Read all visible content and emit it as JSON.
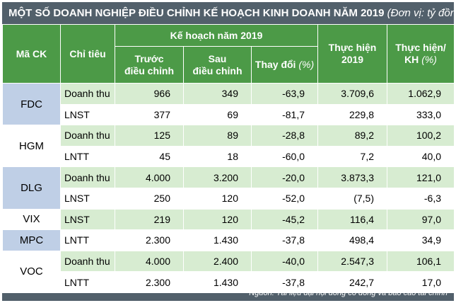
{
  "title": {
    "main": "MỘT SỐ DOANH NGHIỆP ĐIỀU CHỈNH KẾ HOẠCH KINH DOANH NĂM 2019",
    "unit": "(Đơn vị: tỷ đồng)"
  },
  "headers": {
    "code": "Mã CK",
    "metric": "Chỉ tiêu",
    "plan_group": "Kế hoạch năm 2019",
    "before_line1": "Trước",
    "before_line2": "điều chỉnh",
    "after_line1": "Sau",
    "after_line2": "điều chỉnh",
    "change_label": "Thay đổi",
    "change_unit": "(%)",
    "actual_line1": "Thực hiện",
    "actual_line2": "2019",
    "ratio_line1": "Thực hiện/",
    "ratio_line2": "KH",
    "ratio_unit": "(%)"
  },
  "companies": [
    {
      "code": "FDC",
      "rows": [
        {
          "metric": "Doanh thu",
          "before": "966",
          "after": "349",
          "change": "-63,9",
          "actual": "3.709,6",
          "ratio": "1.062,9"
        },
        {
          "metric": "LNST",
          "before": "377",
          "after": "69",
          "change": "-81,7",
          "actual": "229,8",
          "ratio": "333,0"
        }
      ]
    },
    {
      "code": "HGM",
      "rows": [
        {
          "metric": "Doanh thu",
          "before": "125",
          "after": "89",
          "change": "-28,8",
          "actual": "89,2",
          "ratio": "100,2"
        },
        {
          "metric": "LNTT",
          "before": "45",
          "after": "18",
          "change": "-60,0",
          "actual": "7,2",
          "ratio": "40,0"
        }
      ]
    },
    {
      "code": "DLG",
      "rows": [
        {
          "metric": "Doanh thu",
          "before": "4.000",
          "after": "3.200",
          "change": "-20,0",
          "actual": "3.873,3",
          "ratio": "121,0"
        },
        {
          "metric": "LNST",
          "before": "250",
          "after": "120",
          "change": "-52,0",
          "actual": "(7,5)",
          "ratio": "-6,3"
        }
      ]
    },
    {
      "code": "VIX",
      "rows": [
        {
          "metric": "LNST",
          "before": "219",
          "after": "120",
          "change": "-45,2",
          "actual": "116,4",
          "ratio": "97,0"
        }
      ]
    },
    {
      "code": "MPC",
      "rows": [
        {
          "metric": "LNTT",
          "before": "2.300",
          "after": "1.430",
          "change": "-37,8",
          "actual": "498,4",
          "ratio": "34,9"
        }
      ]
    },
    {
      "code": "VOC",
      "rows": [
        {
          "metric": "Doanh thu",
          "before": "4.000",
          "after": "2.400",
          "change": "-40,0",
          "actual": "2.547,3",
          "ratio": "106,1"
        },
        {
          "metric": "LNTT",
          "before": "2.300",
          "after": "1.430",
          "change": "-37,8",
          "actual": "242,7",
          "ratio": "17,0"
        }
      ]
    }
  ],
  "source": "Nguồn: Tài liệu đại hội đồng cổ đông và báo cáo tài chính",
  "colors": {
    "frame": "#52606b",
    "header_green": "#4c9a47",
    "row_green": "#d7ecd1",
    "code_blue": "#bfcfe6"
  }
}
